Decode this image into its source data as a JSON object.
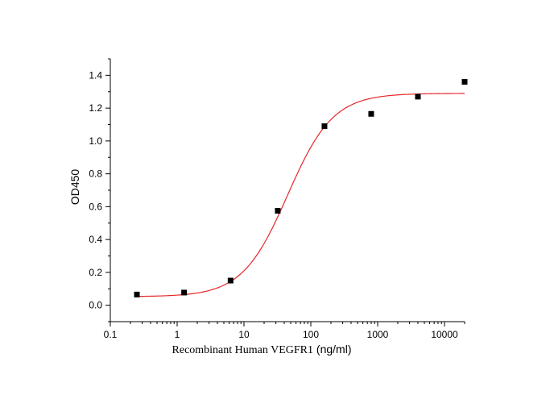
{
  "chart_data": {
    "type": "scatter",
    "xlabel_part1": "Recombinant Human VEGFR1",
    "xlabel_part2": " (ng/ml)",
    "ylabel": "OD450",
    "xscale": "log",
    "xlim": [
      0.1,
      20000
    ],
    "ylim": [
      -0.1,
      1.5
    ],
    "x_ticks": [
      0.1,
      1,
      10,
      100,
      1000,
      10000
    ],
    "x_tick_labels": [
      "0.1",
      "1",
      "10",
      "100",
      "1000",
      "10000"
    ],
    "y_ticks": [
      0.0,
      0.2,
      0.4,
      0.6,
      0.8,
      1.0,
      1.2,
      1.4
    ],
    "y_tick_labels": [
      "0.0",
      "0.2",
      "0.4",
      "0.6",
      "0.8",
      "1.0",
      "1.2",
      "1.4"
    ],
    "points": {
      "x": [
        0.25,
        1.27,
        6.3,
        32,
        160,
        800,
        4000,
        20000
      ],
      "y": [
        0.065,
        0.077,
        0.15,
        0.575,
        1.09,
        1.165,
        1.27,
        1.36
      ]
    },
    "fit": {
      "model": "4PL",
      "bottom": 0.052,
      "top": 1.29,
      "ec50": 45,
      "hill": 1.28,
      "x_from": 0.25,
      "x_to": 20000
    },
    "colors": {
      "points": "#000000",
      "fit": "#e8262a",
      "axes": "#000000"
    }
  }
}
